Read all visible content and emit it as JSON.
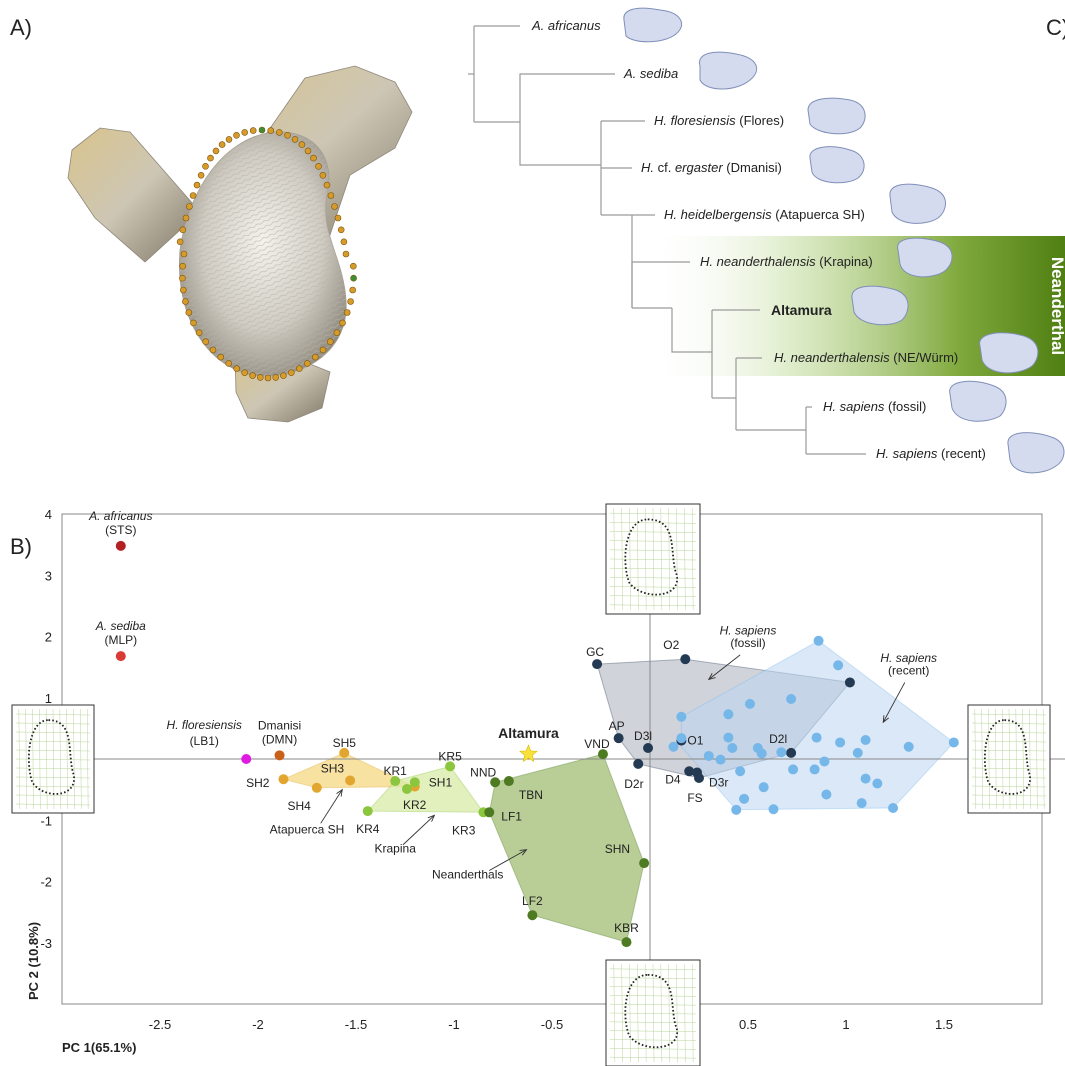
{
  "panels": {
    "a": "A)",
    "b": "B)",
    "c": "C)"
  },
  "tree": {
    "band_label": "Neanderthal",
    "taxa": [
      {
        "genus": "A. africanus",
        "rest": ""
      },
      {
        "genus": "A. sediba",
        "rest": ""
      },
      {
        "genus": "H. floresiensis",
        "rest": " (Flores)"
      },
      {
        "genus": "H.",
        "mid": " cf. ",
        "genus2": "ergaster",
        "rest": " (Dmanisi)"
      },
      {
        "genus": "H. heidelbergensis",
        "rest": " (Atapuerca SH)"
      },
      {
        "genus": "H. neanderthalensis",
        "rest": " (Krapina)"
      },
      {
        "bold": "Altamura"
      },
      {
        "genus": "H. neanderthalensis",
        "rest": " (NE/Würm)"
      },
      {
        "genus": "H. sapiens",
        "rest": " (fossil)"
      },
      {
        "genus": "H. sapiens",
        "rest": " (recent)"
      }
    ]
  },
  "chart_data": {
    "type": "scatter",
    "xlabel": "PC 1(65.1%)",
    "ylabel": "PC 2 (10.8%)",
    "xlim": [
      -3.0,
      2.0
    ],
    "ylim": [
      -4.0,
      4.0
    ],
    "xticks": [
      -2.5,
      -2,
      -1.5,
      -1,
      -0.5,
      0.5,
      1,
      1.5
    ],
    "xtick_labels": [
      "-2.5",
      "-2",
      "-1.5",
      "-1",
      "-0.5",
      "0.5",
      "1",
      "1.5"
    ],
    "yticks": [
      4,
      3,
      2,
      1,
      -1,
      -2,
      -3
    ],
    "ytick_labels": [
      "4",
      "3",
      "2",
      "1",
      "-1",
      "-2",
      "-3"
    ],
    "colors": {
      "africanus": "#b31f23",
      "sediba": "#d93a36",
      "floresiensis": "#e01ae0",
      "dmanisi": "#c8601a",
      "atapuerca": "#e2a630",
      "krapina": "#8cc63f",
      "neanderthal": "#4e7a22",
      "fossil": "#233a52",
      "recent": "#76b7ea",
      "altamura": "#f7e13a"
    },
    "groups": [
      {
        "key": "atapuerca",
        "label": "Atapuerca SH",
        "hull_fill": "#f3d57a",
        "hull_opacity": 0.7,
        "points": [
          {
            "label": "SH5",
            "x": -1.56,
            "y": 0.1
          },
          {
            "label": "SH3",
            "x": -1.53,
            "y": -0.35
          },
          {
            "label": "SH2",
            "x": -1.87,
            "y": -0.33
          },
          {
            "label": "SH4",
            "x": -1.7,
            "y": -0.47
          },
          {
            "label": "",
            "x": -1.2,
            "y": -0.45
          }
        ],
        "hull": [
          [
            -1.87,
            -0.33
          ],
          [
            -1.56,
            0.1
          ],
          [
            -1.2,
            -0.45
          ],
          [
            -1.7,
            -0.47
          ]
        ]
      },
      {
        "key": "krapina",
        "label": "Krapina",
        "hull_fill": "#d8eba8",
        "hull_opacity": 0.75,
        "points": [
          {
            "label": "KR5",
            "x": -1.02,
            "y": -0.12
          },
          {
            "label": "KR1",
            "x": -1.3,
            "y": -0.36
          },
          {
            "label": "SH1",
            "x": -1.2,
            "y": -0.38
          },
          {
            "label": "KR2",
            "x": -1.24,
            "y": -0.49
          },
          {
            "label": "KR4",
            "x": -1.44,
            "y": -0.85
          },
          {
            "label": "KR3",
            "x": -0.85,
            "y": -0.87
          }
        ],
        "hull": [
          [
            -1.44,
            -0.85
          ],
          [
            -1.3,
            -0.36
          ],
          [
            -1.02,
            -0.12
          ],
          [
            -0.85,
            -0.87
          ]
        ]
      },
      {
        "key": "neanderthal",
        "label": "Neanderthals",
        "hull_fill": "#9dbb6e",
        "hull_opacity": 0.72,
        "points": [
          {
            "label": "VND",
            "x": -0.24,
            "y": 0.08
          },
          {
            "label": "NND",
            "x": -0.79,
            "y": -0.38
          },
          {
            "label": "TBN",
            "x": -0.72,
            "y": -0.36
          },
          {
            "label": "LF1",
            "x": -0.82,
            "y": -0.87
          },
          {
            "label": "SHN",
            "x": -0.03,
            "y": -1.7
          },
          {
            "label": "LF2",
            "x": -0.6,
            "y": -2.55
          },
          {
            "label": "KBR",
            "x": -0.12,
            "y": -2.99
          }
        ],
        "hull": [
          [
            -0.82,
            -0.87
          ],
          [
            -0.79,
            -0.38
          ],
          [
            -0.24,
            0.08
          ],
          [
            -0.03,
            -1.7
          ],
          [
            -0.12,
            -2.99
          ],
          [
            -0.6,
            -2.55
          ]
        ]
      },
      {
        "key": "fossil",
        "label": "H. sapiens (fossil)",
        "hull_fill": "#a9afbb",
        "hull_opacity": 0.55,
        "points": [
          {
            "label": "GC",
            "x": -0.27,
            "y": 1.55
          },
          {
            "label": "O2",
            "x": 0.18,
            "y": 1.63
          },
          {
            "label": "AP",
            "x": -0.16,
            "y": 0.34
          },
          {
            "label": "D3l",
            "x": -0.01,
            "y": 0.18
          },
          {
            "label": "O1",
            "x": 0.16,
            "y": 0.3
          },
          {
            "label": "D2l",
            "x": 0.72,
            "y": 0.1
          },
          {
            "label": "D2r",
            "x": -0.06,
            "y": -0.08
          },
          {
            "label": "D4",
            "x": 0.2,
            "y": -0.2
          },
          {
            "label": "D3r",
            "x": 0.24,
            "y": -0.22
          },
          {
            "label": "FS",
            "x": 0.25,
            "y": -0.31
          },
          {
            "label": "",
            "x": 1.02,
            "y": 1.25
          }
        ],
        "hull": [
          [
            -0.27,
            1.55
          ],
          [
            0.18,
            1.63
          ],
          [
            1.02,
            1.25
          ],
          [
            0.72,
            0.1
          ],
          [
            0.25,
            -0.31
          ],
          [
            -0.06,
            -0.08
          ],
          [
            -0.16,
            0.34
          ]
        ]
      },
      {
        "key": "recent",
        "label": "H. sapiens (recent)",
        "hull_fill": "#bcd5f3",
        "hull_opacity": 0.55,
        "points": [
          {
            "label": "",
            "x": 0.86,
            "y": 1.93
          },
          {
            "label": "",
            "x": 0.96,
            "y": 1.53
          },
          {
            "label": "",
            "x": 0.16,
            "y": 0.69
          },
          {
            "label": "",
            "x": 0.4,
            "y": 0.73
          },
          {
            "label": "",
            "x": 0.51,
            "y": 0.9
          },
          {
            "label": "",
            "x": 0.72,
            "y": 0.98
          },
          {
            "label": "",
            "x": 0.16,
            "y": 0.34
          },
          {
            "label": "",
            "x": 0.12,
            "y": 0.2
          },
          {
            "label": "",
            "x": 0.4,
            "y": 0.35
          },
          {
            "label": "",
            "x": 0.42,
            "y": 0.18
          },
          {
            "label": "",
            "x": 0.55,
            "y": 0.18
          },
          {
            "label": "",
            "x": 0.57,
            "y": 0.09
          },
          {
            "label": "",
            "x": 0.67,
            "y": 0.11
          },
          {
            "label": "",
            "x": 0.3,
            "y": 0.05
          },
          {
            "label": "",
            "x": 0.36,
            "y": -0.01
          },
          {
            "label": "",
            "x": 0.85,
            "y": 0.35
          },
          {
            "label": "",
            "x": 0.97,
            "y": 0.27
          },
          {
            "label": "",
            "x": 1.1,
            "y": 0.31
          },
          {
            "label": "",
            "x": 1.32,
            "y": 0.2
          },
          {
            "label": "",
            "x": 1.55,
            "y": 0.27
          },
          {
            "label": "",
            "x": 1.06,
            "y": 0.1
          },
          {
            "label": "",
            "x": 0.89,
            "y": -0.04
          },
          {
            "label": "",
            "x": 0.46,
            "y": -0.2
          },
          {
            "label": "",
            "x": 0.73,
            "y": -0.17
          },
          {
            "label": "",
            "x": 0.84,
            "y": -0.17
          },
          {
            "label": "",
            "x": 1.1,
            "y": -0.32
          },
          {
            "label": "",
            "x": 1.16,
            "y": -0.4
          },
          {
            "label": "",
            "x": 0.58,
            "y": -0.46
          },
          {
            "label": "",
            "x": 0.9,
            "y": -0.58
          },
          {
            "label": "",
            "x": 0.48,
            "y": -0.65
          },
          {
            "label": "",
            "x": 1.08,
            "y": -0.72
          },
          {
            "label": "",
            "x": 1.24,
            "y": -0.8
          },
          {
            "label": "",
            "x": 0.44,
            "y": -0.83
          },
          {
            "label": "",
            "x": 0.63,
            "y": -0.82
          }
        ],
        "hull": [
          [
            0.16,
            0.69
          ],
          [
            0.86,
            1.93
          ],
          [
            1.55,
            0.27
          ],
          [
            1.24,
            -0.8
          ],
          [
            0.63,
            -0.82
          ],
          [
            0.44,
            -0.83
          ],
          [
            0.16,
            0.2
          ]
        ]
      }
    ],
    "singles": [
      {
        "key": "africanus",
        "x": -2.7,
        "y": 3.48,
        "label1": "A. africanus",
        "label2": "(STS)"
      },
      {
        "key": "sediba",
        "x": -2.7,
        "y": 1.68,
        "label1": "A. sediba",
        "label2": "(MLP)"
      },
      {
        "key": "floresiensis",
        "x": -2.06,
        "y": 0.0,
        "label1": "H. floresiensis",
        "label2": "(LB1)"
      },
      {
        "key": "dmanisi",
        "x": -1.89,
        "y": 0.06,
        "label1": "Dmanisi",
        "label2": "(DMN)"
      }
    ],
    "altamura": {
      "label": "Altamura",
      "x": -0.62,
      "y": 0.08
    },
    "group_labels": {
      "atapuerca": "Atapuerca SH",
      "krapina": "Krapina",
      "neanderthal": "Neanderthals",
      "fossil_1": "H. sapiens",
      "fossil_2": "(fossil)",
      "recent_1": "H. sapiens",
      "recent_2": "(recent)"
    }
  }
}
